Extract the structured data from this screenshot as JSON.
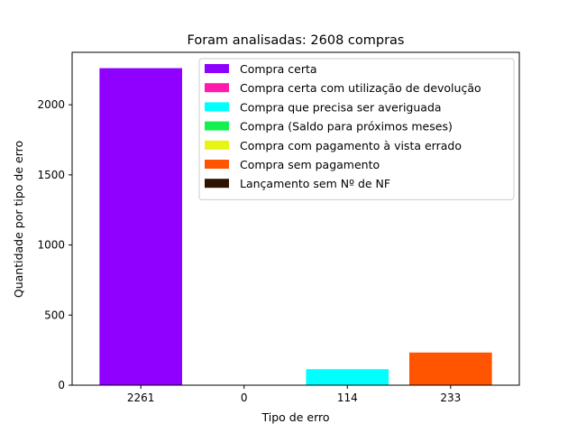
{
  "chart_data": {
    "type": "bar",
    "title": "Foram analisadas: 2608 compras",
    "xlabel": "Tipo de erro",
    "ylabel": "Quantidade por tipo de erro",
    "ylim": [
      0,
      2374
    ],
    "yticks": [
      0,
      500,
      1000,
      1500,
      2000
    ],
    "legend_position": "upper right",
    "categories": [
      "2261",
      "0",
      "114",
      "233"
    ],
    "values": [
      2261,
      0,
      114,
      233
    ],
    "bar_colors": [
      "#8f00ff",
      "#ff1493",
      "#00ffff",
      "#ff5500"
    ],
    "legend": [
      {
        "label": "Compra certa",
        "color": "#8f00ff"
      },
      {
        "label": "Compra certa com utilização de devolução",
        "color": "#ff1aac"
      },
      {
        "label": "Compra que precisa ser averiguada",
        "color": "#00ffff"
      },
      {
        "label": "Compra (Saldo para próximos meses)",
        "color": "#14f050"
      },
      {
        "label": "Compra com pagamento à vista errado",
        "color": "#e6f514"
      },
      {
        "label": "Compra sem pagamento",
        "color": "#ff5500"
      },
      {
        "label": "Lançamento sem Nº de NF",
        "color": "#2e1400"
      }
    ]
  }
}
